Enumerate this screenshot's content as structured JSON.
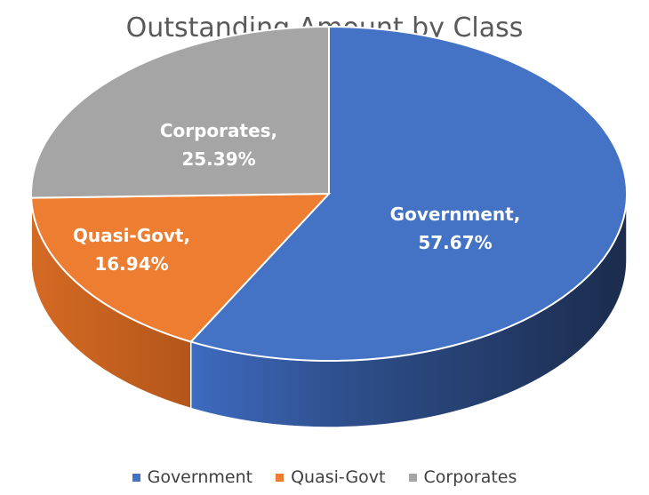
{
  "chart_data": {
    "type": "pie",
    "title": "Outstanding Amount by Class",
    "categories": [
      "Government",
      "Quasi-Govt",
      "Corporates"
    ],
    "values": [
      57.67,
      16.94,
      25.39
    ],
    "data_labels": [
      {
        "name": "Government,",
        "value": "57.67%"
      },
      {
        "name": "Quasi-Govt,",
        "value": "16.94%"
      },
      {
        "name": "Corporates,",
        "value": "25.39%"
      }
    ],
    "colors": [
      "#4472C4",
      "#ED7D31",
      "#A5A5A5"
    ],
    "legend": {
      "position": "bottom"
    },
    "style": "3d"
  }
}
